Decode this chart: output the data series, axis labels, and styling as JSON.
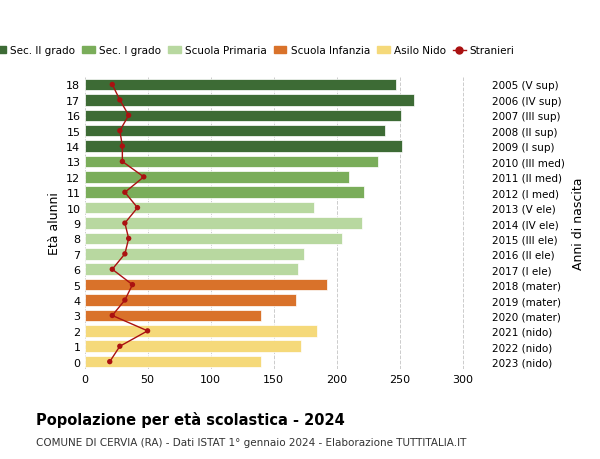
{
  "ages": [
    18,
    17,
    16,
    15,
    14,
    13,
    12,
    11,
    10,
    9,
    8,
    7,
    6,
    5,
    4,
    3,
    2,
    1,
    0
  ],
  "right_labels": [
    "2005 (V sup)",
    "2006 (IV sup)",
    "2007 (III sup)",
    "2008 (II sup)",
    "2009 (I sup)",
    "2010 (III med)",
    "2011 (II med)",
    "2012 (I med)",
    "2013 (V ele)",
    "2014 (IV ele)",
    "2015 (III ele)",
    "2016 (II ele)",
    "2017 (I ele)",
    "2018 (mater)",
    "2019 (mater)",
    "2020 (mater)",
    "2021 (nido)",
    "2022 (nido)",
    "2023 (nido)"
  ],
  "bar_values": [
    247,
    261,
    251,
    238,
    252,
    233,
    210,
    222,
    182,
    220,
    204,
    174,
    169,
    192,
    168,
    140,
    184,
    172,
    140
  ],
  "stranieri": [
    22,
    28,
    35,
    28,
    30,
    30,
    47,
    32,
    42,
    32,
    35,
    32,
    22,
    38,
    32,
    22,
    50,
    28,
    20
  ],
  "bar_colors": [
    "#3d6b35",
    "#3d6b35",
    "#3d6b35",
    "#3d6b35",
    "#3d6b35",
    "#7aad5a",
    "#7aad5a",
    "#7aad5a",
    "#b8d8a0",
    "#b8d8a0",
    "#b8d8a0",
    "#b8d8a0",
    "#b8d8a0",
    "#d9722a",
    "#d9722a",
    "#d9722a",
    "#f5d97a",
    "#f5d97a",
    "#f5d97a"
  ],
  "legend_labels": [
    "Sec. II grado",
    "Sec. I grado",
    "Scuola Primaria",
    "Scuola Infanzia",
    "Asilo Nido",
    "Stranieri"
  ],
  "legend_colors": [
    "#3d6b35",
    "#7aad5a",
    "#b8d8a0",
    "#d9722a",
    "#f5d97a",
    "#aa1111"
  ],
  "stranieri_color": "#aa1111",
  "title_bold": "Popolazione per età scolastica - 2024",
  "subtitle": "COMUNE DI CERVIA (RA) - Dati ISTAT 1° gennaio 2024 - Elaborazione TUTTITALIA.IT",
  "ylabel_left": "Età alunni",
  "ylabel_right": "Anni di nascita",
  "xlim": [
    0,
    320
  ],
  "xticks": [
    0,
    50,
    100,
    150,
    200,
    250,
    300
  ],
  "background_color": "#ffffff",
  "grid_color": "#cccccc"
}
